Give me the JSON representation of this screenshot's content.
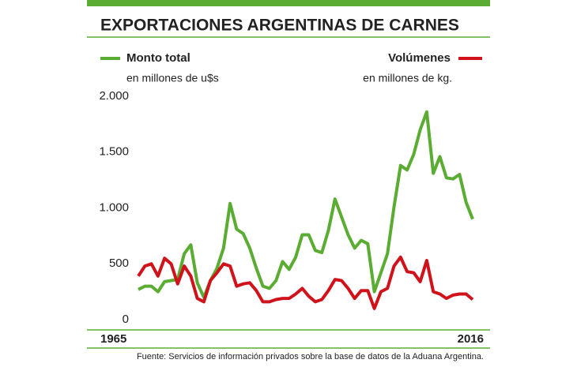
{
  "chart_data": {
    "type": "line",
    "title": "EXPORTACIONES ARGENTINAS DE CARNES",
    "source": "Fuente: Servicios de información privados sobre la base de datos de la Aduana Argentina.",
    "x": [
      1965,
      1966,
      1967,
      1968,
      1969,
      1970,
      1971,
      1972,
      1973,
      1974,
      1975,
      1976,
      1977,
      1978,
      1979,
      1980,
      1981,
      1982,
      1983,
      1984,
      1985,
      1986,
      1987,
      1988,
      1989,
      1990,
      1991,
      1992,
      1993,
      1994,
      1995,
      1996,
      1997,
      1998,
      1999,
      2000,
      2001,
      2002,
      2003,
      2004,
      2005,
      2006,
      2007,
      2008,
      2009,
      2010,
      2011,
      2012,
      2013,
      2014,
      2015,
      2016
    ],
    "xlim": [
      1965,
      2016
    ],
    "xticks": [
      1965,
      2016
    ],
    "ylim": [
      0,
      2000
    ],
    "yticks": [
      0,
      500,
      {
        "value": 1000,
        "label": "1.000"
      },
      {
        "value": 1500,
        "label": "1.500"
      },
      {
        "value": 2000,
        "label": "2.000"
      }
    ],
    "grid": false,
    "series": [
      {
        "name": "Monto total",
        "unit": "en millones de u$s",
        "color": "#5aad32",
        "values": [
          270,
          300,
          300,
          250,
          340,
          350,
          360,
          590,
          670,
          330,
          200,
          350,
          460,
          640,
          1040,
          810,
          770,
          640,
          460,
          300,
          280,
          350,
          520,
          450,
          560,
          760,
          760,
          620,
          600,
          800,
          1080,
          920,
          760,
          640,
          710,
          680,
          250,
          420,
          590,
          1010,
          1380,
          1340,
          1480,
          1700,
          1860,
          1310,
          1460,
          1270,
          1260,
          1300,
          1050,
          900
        ]
      },
      {
        "name": "Volúmenes",
        "unit": "en millones de kg.",
        "color": "#d0121b",
        "values": [
          390,
          480,
          500,
          390,
          550,
          500,
          320,
          480,
          390,
          190,
          160,
          350,
          420,
          500,
          480,
          300,
          320,
          330,
          260,
          160,
          160,
          180,
          190,
          190,
          230,
          280,
          210,
          160,
          180,
          260,
          360,
          350,
          280,
          190,
          260,
          260,
          100,
          250,
          280,
          480,
          560,
          430,
          420,
          340,
          530,
          250,
          230,
          190,
          220,
          230,
          230,
          180
        ]
      }
    ]
  }
}
